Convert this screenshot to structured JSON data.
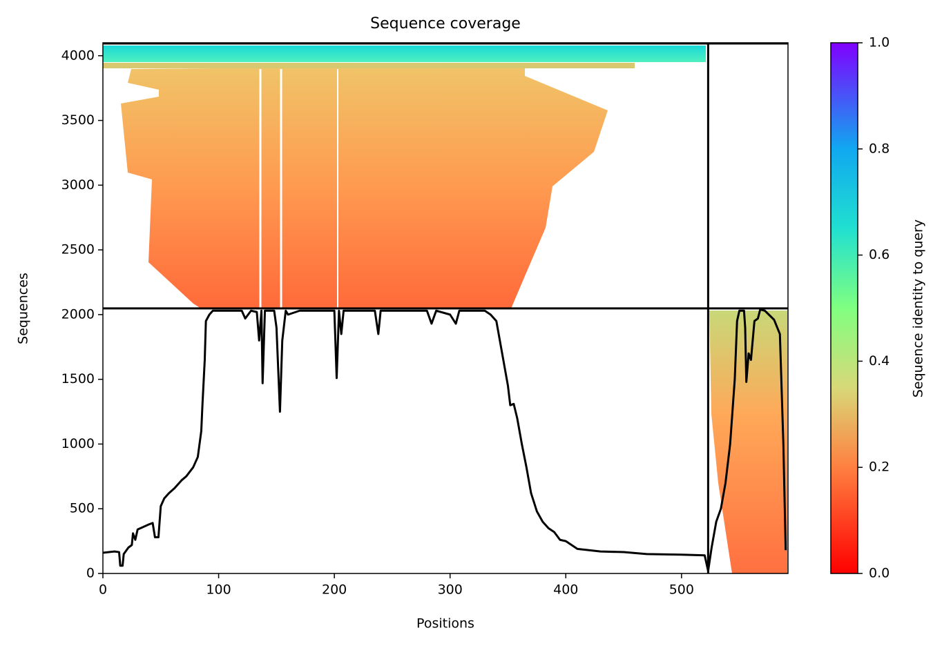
{
  "chart_data": {
    "type": "line",
    "title": "Sequence coverage",
    "xlabel": "Positions",
    "ylabel": "Sequences",
    "xlim": [
      0,
      592
    ],
    "ylim": [
      0,
      4100
    ],
    "xticks": [
      0,
      100,
      200,
      300,
      400,
      500
    ],
    "yticks": [
      0,
      500,
      1000,
      1500,
      2000,
      2500,
      3000,
      3500,
      4000
    ],
    "vlines": [
      523
    ],
    "hlines": [
      2048
    ],
    "series": [
      {
        "name": "coverage",
        "color": "#000000",
        "x": [
          0,
          10,
          14,
          15,
          17,
          18,
          22,
          25,
          26,
          28,
          30,
          35,
          40,
          43,
          45,
          48,
          50,
          53,
          57,
          62,
          68,
          72,
          78,
          82,
          85,
          86,
          88,
          89,
          92,
          95,
          120,
          123,
          128,
          133,
          135,
          137,
          138,
          140,
          148,
          150,
          153,
          155,
          158,
          160,
          170,
          200,
          202,
          204,
          206,
          208,
          235,
          238,
          240,
          280,
          284,
          288,
          300,
          305,
          308,
          330,
          335,
          340,
          345,
          350,
          352,
          355,
          358,
          362,
          366,
          370,
          375,
          380,
          385,
          390,
          395,
          400,
          405,
          410,
          420,
          430,
          450,
          470,
          500,
          520,
          523,
          526,
          530,
          534,
          538,
          542,
          546,
          548,
          550,
          554,
          555,
          556,
          558,
          560,
          563,
          566,
          568,
          572,
          580,
          585,
          588,
          590
        ],
        "values": [
          160,
          170,
          165,
          60,
          60,
          150,
          200,
          220,
          310,
          260,
          340,
          360,
          380,
          390,
          280,
          280,
          520,
          580,
          620,
          660,
          720,
          750,
          820,
          900,
          1100,
          1300,
          1650,
          1950,
          2000,
          2030,
          2030,
          1970,
          2030,
          2020,
          1800,
          2030,
          1470,
          2030,
          2030,
          1900,
          1250,
          1800,
          2030,
          2000,
          2030,
          2030,
          1510,
          2030,
          1850,
          2030,
          2030,
          1850,
          2030,
          2030,
          1930,
          2030,
          2000,
          1930,
          2030,
          2030,
          2000,
          1950,
          1700,
          1450,
          1300,
          1310,
          1200,
          1000,
          820,
          620,
          480,
          400,
          350,
          320,
          260,
          250,
          220,
          190,
          180,
          170,
          165,
          150,
          145,
          140,
          20,
          200,
          400,
          500,
          700,
          1000,
          1500,
          1950,
          2030,
          2030,
          1900,
          1480,
          1700,
          1650,
          1950,
          1970,
          2040,
          2030,
          1960,
          1850,
          1000,
          180
        ]
      }
    ],
    "colorbar": {
      "label": "Sequence identity to query",
      "lim": [
        0,
        1
      ],
      "ticks": [
        {
          "value": 0,
          "label": "0.0"
        },
        0.2,
        0.4,
        0.6,
        0.8,
        {
          "value": 1,
          "label": "1.0"
        }
      ]
    }
  }
}
